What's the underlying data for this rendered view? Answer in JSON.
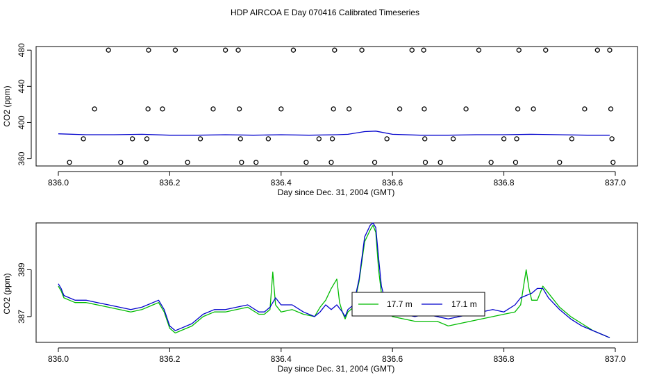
{
  "title": "HDP AIRCOA E  Day 070416  Calibrated Timeseries",
  "chart_data": [
    {
      "type": "scatter",
      "ylabel": "CO2 (ppm)",
      "xlabel": "Day since Dec. 31, 2004 (GMT)",
      "xlim": [
        836.0,
        837.0
      ],
      "ylim": [
        352,
        484
      ],
      "x_ticks": [
        "836.0",
        "836.2",
        "836.4",
        "836.6",
        "836.8",
        "837.0"
      ],
      "y_ticks": [
        "360",
        "400",
        "440",
        "480"
      ],
      "grid": false,
      "points": [
        {
          "x": 836.02,
          "y": 356
        },
        {
          "x": 836.045,
          "y": 382
        },
        {
          "x": 836.065,
          "y": 415
        },
        {
          "x": 836.09,
          "y": 480
        },
        {
          "x": 836.112,
          "y": 356
        },
        {
          "x": 836.133,
          "y": 382
        },
        {
          "x": 836.157,
          "y": 356
        },
        {
          "x": 836.159,
          "y": 382
        },
        {
          "x": 836.161,
          "y": 415
        },
        {
          "x": 836.162,
          "y": 480
        },
        {
          "x": 836.187,
          "y": 415
        },
        {
          "x": 836.21,
          "y": 480
        },
        {
          "x": 836.232,
          "y": 356
        },
        {
          "x": 836.255,
          "y": 382
        },
        {
          "x": 836.278,
          "y": 415
        },
        {
          "x": 836.3,
          "y": 480
        },
        {
          "x": 836.323,
          "y": 480
        },
        {
          "x": 836.325,
          "y": 415
        },
        {
          "x": 836.327,
          "y": 382
        },
        {
          "x": 836.329,
          "y": 356
        },
        {
          "x": 836.355,
          "y": 356
        },
        {
          "x": 836.377,
          "y": 382
        },
        {
          "x": 836.4,
          "y": 415
        },
        {
          "x": 836.422,
          "y": 480
        },
        {
          "x": 836.445,
          "y": 356
        },
        {
          "x": 836.468,
          "y": 382
        },
        {
          "x": 836.49,
          "y": 356
        },
        {
          "x": 836.492,
          "y": 382
        },
        {
          "x": 836.494,
          "y": 415
        },
        {
          "x": 836.496,
          "y": 480
        },
        {
          "x": 836.522,
          "y": 415
        },
        {
          "x": 836.545,
          "y": 480
        },
        {
          "x": 836.568,
          "y": 356
        },
        {
          "x": 836.59,
          "y": 382
        },
        {
          "x": 836.613,
          "y": 415
        },
        {
          "x": 836.635,
          "y": 480
        },
        {
          "x": 836.656,
          "y": 480
        },
        {
          "x": 836.657,
          "y": 415
        },
        {
          "x": 836.658,
          "y": 382
        },
        {
          "x": 836.659,
          "y": 356
        },
        {
          "x": 836.686,
          "y": 356
        },
        {
          "x": 836.709,
          "y": 382
        },
        {
          "x": 836.732,
          "y": 415
        },
        {
          "x": 836.755,
          "y": 480
        },
        {
          "x": 836.777,
          "y": 356
        },
        {
          "x": 836.8,
          "y": 382
        },
        {
          "x": 836.821,
          "y": 356
        },
        {
          "x": 836.823,
          "y": 382
        },
        {
          "x": 836.825,
          "y": 415
        },
        {
          "x": 836.827,
          "y": 480
        },
        {
          "x": 836.853,
          "y": 415
        },
        {
          "x": 836.875,
          "y": 480
        },
        {
          "x": 836.9,
          "y": 356
        },
        {
          "x": 836.922,
          "y": 382
        },
        {
          "x": 836.945,
          "y": 415
        },
        {
          "x": 836.968,
          "y": 480
        },
        {
          "x": 836.99,
          "y": 480
        },
        {
          "x": 836.992,
          "y": 415
        },
        {
          "x": 836.994,
          "y": 382
        },
        {
          "x": 836.996,
          "y": 356
        }
      ],
      "series": [
        {
          "color": "#0000cc",
          "x": [
            836.0,
            836.05,
            836.1,
            836.15,
            836.2,
            836.25,
            836.3,
            836.35,
            836.4,
            836.45,
            836.5,
            836.52,
            836.55,
            836.57,
            836.6,
            836.65,
            836.7,
            836.75,
            836.8,
            836.85,
            836.9,
            836.95,
            836.99
          ],
          "y": [
            387.5,
            386.5,
            386.5,
            387,
            386,
            386,
            386.5,
            386,
            386.5,
            386,
            386.5,
            387,
            390,
            390.5,
            387,
            386,
            386,
            386.5,
            386.5,
            387,
            386.5,
            386,
            386
          ]
        }
      ]
    },
    {
      "type": "line",
      "ylabel": "CO2 (ppm)",
      "xlabel": "Day since Dec. 31, 2004 (GMT)",
      "xlim": [
        836.0,
        837.0
      ],
      "ylim": [
        385.9,
        391.0
      ],
      "x_ticks": [
        "836.0",
        "836.2",
        "836.4",
        "836.6",
        "836.8",
        "837.0"
      ],
      "y_ticks": [
        "387",
        "389"
      ],
      "grid": false,
      "legend": {
        "position": "center",
        "entries": [
          {
            "label": "17.7 m",
            "color": "#00bb00"
          },
          {
            "label": "17.1 m",
            "color": "#0000cc"
          }
        ]
      },
      "series": [
        {
          "name": "17.7 m",
          "color": "#00bb00",
          "x": [
            836.0,
            836.005,
            836.01,
            836.02,
            836.03,
            836.05,
            836.07,
            836.09,
            836.11,
            836.13,
            836.15,
            836.17,
            836.18,
            836.19,
            836.2,
            836.21,
            836.22,
            836.24,
            836.26,
            836.28,
            836.3,
            836.32,
            836.34,
            836.36,
            836.37,
            836.38,
            836.385,
            836.39,
            836.4,
            836.42,
            836.44,
            836.46,
            836.47,
            836.48,
            836.49,
            836.5,
            836.505,
            836.51,
            836.515,
            836.52,
            836.53,
            836.54,
            836.55,
            836.56,
            836.565,
            836.57,
            836.575,
            836.58,
            836.59,
            836.6,
            836.62,
            836.64,
            836.66,
            836.68,
            836.7,
            836.72,
            836.74,
            836.76,
            836.78,
            836.8,
            836.82,
            836.83,
            836.84,
            836.845,
            836.85,
            836.86,
            836.87,
            836.88,
            836.9,
            836.92,
            836.94,
            836.96,
            836.98,
            836.99
          ],
          "y": [
            388.3,
            388.1,
            387.8,
            387.7,
            387.6,
            387.6,
            387.5,
            387.4,
            387.3,
            387.2,
            387.3,
            387.5,
            387.6,
            387.2,
            386.5,
            386.3,
            386.4,
            386.6,
            387,
            387.2,
            387.2,
            387.3,
            387.4,
            387.1,
            387.1,
            387.3,
            388.9,
            387.5,
            387.2,
            387.3,
            387.1,
            387,
            387.4,
            387.7,
            388.2,
            388.6,
            387.6,
            387.2,
            386.9,
            387.2,
            387.4,
            388.5,
            390.2,
            390.7,
            390.9,
            390.6,
            389,
            388,
            387.2,
            387,
            386.9,
            386.8,
            386.8,
            386.8,
            386.6,
            386.7,
            386.8,
            386.9,
            387,
            387.1,
            387.2,
            387.5,
            389,
            388.2,
            387.7,
            387.7,
            388.3,
            388,
            387.4,
            387,
            386.7,
            386.4,
            386.2,
            386.1
          ]
        },
        {
          "name": "17.1 m",
          "color": "#0000cc",
          "x": [
            836.0,
            836.005,
            836.01,
            836.02,
            836.03,
            836.05,
            836.07,
            836.09,
            836.11,
            836.13,
            836.15,
            836.17,
            836.18,
            836.19,
            836.2,
            836.21,
            836.22,
            836.24,
            836.26,
            836.28,
            836.3,
            836.32,
            836.34,
            836.36,
            836.37,
            836.38,
            836.39,
            836.4,
            836.42,
            836.44,
            836.46,
            836.47,
            836.48,
            836.49,
            836.5,
            836.51,
            836.515,
            836.52,
            836.53,
            836.54,
            836.55,
            836.56,
            836.565,
            836.57,
            836.575,
            836.58,
            836.59,
            836.6,
            836.62,
            836.64,
            836.66,
            836.68,
            836.7,
            836.72,
            836.74,
            836.76,
            836.78,
            836.8,
            836.82,
            836.83,
            836.84,
            836.85,
            836.86,
            836.87,
            836.88,
            836.9,
            836.92,
            836.94,
            836.96,
            836.98,
            836.99
          ],
          "y": [
            388.4,
            388.2,
            387.9,
            387.8,
            387.7,
            387.7,
            387.6,
            387.5,
            387.4,
            387.3,
            387.4,
            387.6,
            387.7,
            387.3,
            386.6,
            386.4,
            386.5,
            386.7,
            387.1,
            387.3,
            387.3,
            387.4,
            387.5,
            387.2,
            387.2,
            387.4,
            387.8,
            387.5,
            387.5,
            387.2,
            387,
            387.2,
            387.5,
            387.3,
            387.5,
            387.2,
            387,
            387.3,
            387.5,
            388.6,
            390.4,
            390.9,
            391,
            390.8,
            389.5,
            388.3,
            387.4,
            387.2,
            387.1,
            387,
            387.1,
            387,
            386.9,
            387,
            387.1,
            387.2,
            387.3,
            387.2,
            387.5,
            387.8,
            387.9,
            388,
            388.2,
            388.2,
            387.8,
            387.3,
            386.9,
            386.6,
            386.4,
            386.2,
            386.1
          ]
        }
      ]
    }
  ]
}
